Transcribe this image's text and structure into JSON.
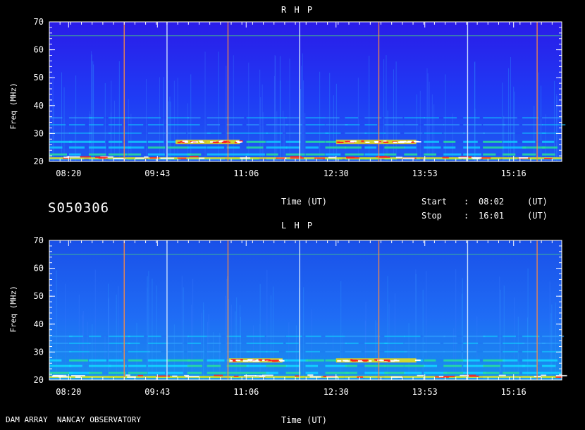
{
  "header": {
    "file_id": "S050306",
    "start_label": "Start",
    "start_sep": ":",
    "start_time": "08:02",
    "start_unit": "(UT)",
    "stop_label": "Stop",
    "stop_sep": ":",
    "stop_time": "16:01",
    "stop_unit": "(UT)"
  },
  "footer": {
    "observatory": "DAM ARRAY  NANCAY OBSERVATORY"
  },
  "chart_data": [
    {
      "type": "heatmap",
      "title": "R H P",
      "xlabel": "Time (UT)",
      "ylabel": "Freq (MHz)",
      "x_ticks": [
        "08:20",
        "09:43",
        "11:06",
        "12:30",
        "13:53",
        "15:16"
      ],
      "y_ticks": [
        20,
        30,
        40,
        50,
        60,
        70
      ],
      "xlim": [
        "08:02",
        "16:01"
      ],
      "ylim": [
        20,
        70
      ],
      "colors": {
        "background": "#2a1ce8",
        "low": "#1f3cf5",
        "mid": "#10c8ff",
        "high": "#ffe000",
        "peak": "#ff2020"
      },
      "emission_bands_mhz": [
        21,
        22.5,
        25,
        27,
        30,
        33,
        35.5
      ],
      "strong_bursts": [
        {
          "t_start": "10:00",
          "t_end": "11:00",
          "freq": 27
        },
        {
          "t_start": "12:30",
          "t_end": "13:45",
          "freq": 27
        }
      ],
      "vertical_lines": [
        "09:12",
        "09:52",
        "10:49",
        "11:56",
        "13:10",
        "14:33",
        "15:38"
      ]
    },
    {
      "type": "heatmap",
      "title": "L H P",
      "xlabel": "Time (UT)",
      "ylabel": "Freq (MHz)",
      "x_ticks": [
        "08:20",
        "09:43",
        "11:06",
        "12:30",
        "13:53",
        "15:16"
      ],
      "y_ticks": [
        20,
        30,
        40,
        50,
        60,
        70
      ],
      "xlim": [
        "08:02",
        "16:01"
      ],
      "ylim": [
        20,
        70
      ],
      "colors": {
        "background": "#1a50e8",
        "low": "#1f6cf5",
        "mid": "#10d8ff",
        "high": "#ffe000",
        "peak": "#ff2020"
      },
      "emission_bands_mhz": [
        21,
        22.5,
        25,
        27,
        30,
        33,
        35.5
      ],
      "strong_bursts": [
        {
          "t_start": "10:50",
          "t_end": "11:40",
          "freq": 27
        },
        {
          "t_start": "12:30",
          "t_end": "13:45",
          "freq": 27
        }
      ],
      "vertical_lines": [
        "09:12",
        "09:52",
        "10:49",
        "11:56",
        "13:10",
        "14:33",
        "15:38"
      ]
    }
  ]
}
